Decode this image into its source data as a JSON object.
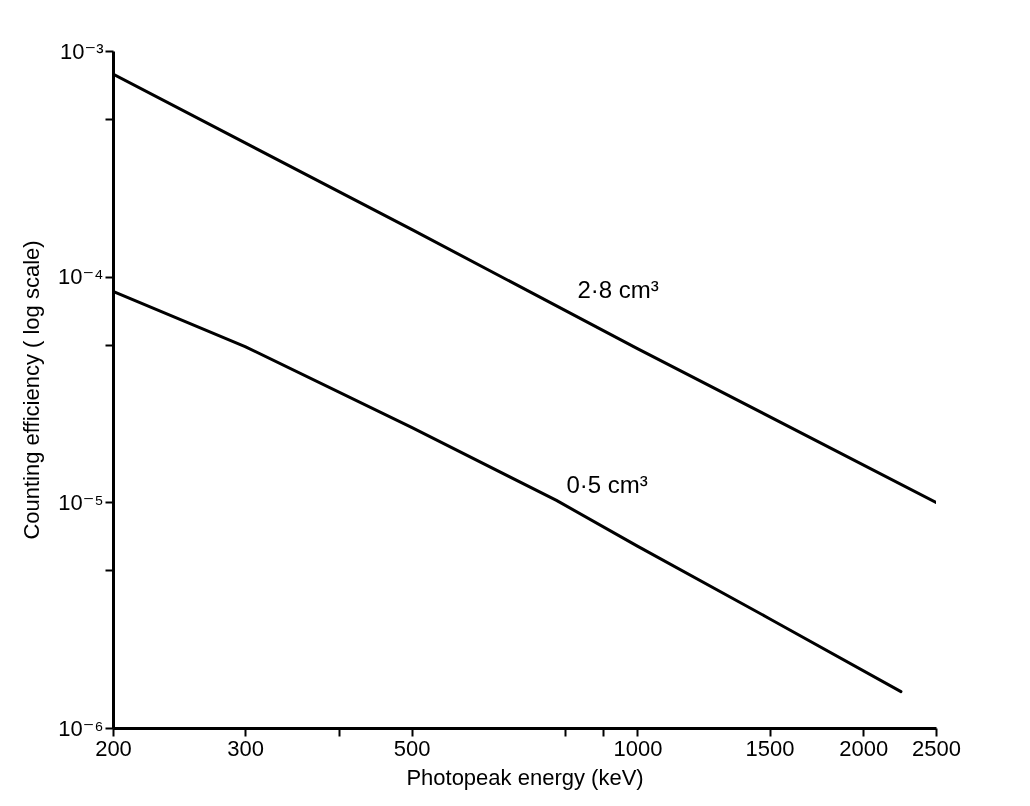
{
  "chart_data": {
    "type": "line",
    "xlabel": "Photopeak energy (keV)",
    "ylabel": "Counting efficiency ( log scale)",
    "log": "xy",
    "grid": false,
    "legend": false,
    "marker": "none",
    "line_style": "solid",
    "xlim": [
      200,
      2500
    ],
    "ylim": [
      1e-06,
      0.001
    ],
    "xticks": [
      200,
      300,
      {
        "value": 400,
        "label": null
      },
      500,
      {
        "value": 800,
        "label": null
      },
      {
        "value": 900,
        "label": null
      },
      1000,
      1500,
      2000,
      2500
    ],
    "yticks": [
      {
        "value": 1e-06,
        "label": "10⁻⁶"
      },
      {
        "value": 5e-06,
        "label": null
      },
      {
        "value": 1e-05,
        "label": "10⁻⁵"
      },
      {
        "value": 5e-05,
        "label": null
      },
      {
        "value": 0.0001,
        "label": "10⁻⁴"
      },
      {
        "value": 0.0005,
        "label": null
      },
      {
        "value": 0.001,
        "label": "10⁻³"
      }
    ],
    "series": [
      {
        "name": "2·8 cm³",
        "color": "#000000",
        "x": [
          200,
          500,
          1000,
          2500
        ],
        "values": [
          0.00079,
          0.000162,
          4.8e-05,
          1e-05
        ]
      },
      {
        "name": "0·5 cm³",
        "color": "#000000",
        "x": [
          200,
          300,
          500,
          780,
          1000,
          1500,
          2245
        ],
        "values": [
          8.6e-05,
          4.9e-05,
          2.15e-05,
          1.02e-05,
          6.4e-06,
          3.05e-06,
          1.45e-06
        ]
      }
    ]
  }
}
